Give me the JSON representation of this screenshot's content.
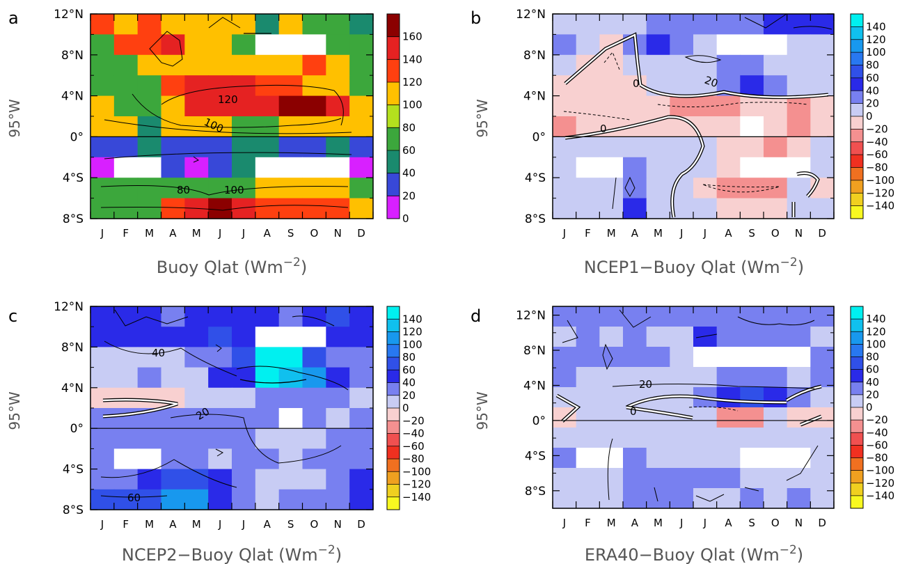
{
  "chart_data": [
    {
      "type": "heatmap",
      "panel_label": "a",
      "title": "",
      "xlabel": "Buoy Qlat (Wm",
      "xlabel_sup": "−2",
      "xlabel_close": ")",
      "ylabel": "95°W",
      "months": [
        "J",
        "F",
        "M",
        "A",
        "M",
        "J",
        "J",
        "A",
        "S",
        "O",
        "N",
        "D"
      ],
      "lat_ticks": [
        "12°N",
        "8°N",
        "4°N",
        "0°",
        "4°S",
        "8°S"
      ],
      "colorbar": {
        "tick_labels": [
          "160",
          "140",
          "120",
          "100",
          "80",
          "60",
          "40",
          "20",
          "0"
        ],
        "colors": [
          "#8b0000",
          "#e52222",
          "#ff4010",
          "#ffc000",
          "#b4e01e",
          "#3ca73c",
          "#1a8a6e",
          "#3848d8",
          "#d820ff"
        ]
      },
      "contour_labels": [
        "120",
        "100",
        "80",
        "100"
      ],
      "rows_lat": [
        "11",
        "9",
        "7",
        "5",
        "3",
        "1",
        "-1",
        "-3",
        "-5",
        "-7"
      ],
      "values": [
        [
          110,
          90,
          110,
          90,
          90,
          90,
          90,
          50,
          90,
          70,
          70,
          50
        ],
        [
          70,
          110,
          110,
          130,
          90,
          90,
          70,
          null,
          null,
          null,
          70,
          70
        ],
        [
          70,
          70,
          90,
          90,
          90,
          90,
          90,
          90,
          90,
          110,
          90,
          70
        ],
        [
          70,
          70,
          70,
          110,
          130,
          130,
          130,
          110,
          110,
          90,
          90,
          70
        ],
        [
          90,
          70,
          70,
          90,
          130,
          130,
          130,
          130,
          150,
          150,
          130,
          90
        ],
        [
          90,
          90,
          50,
          90,
          90,
          90,
          70,
          70,
          90,
          90,
          90,
          90
        ],
        [
          30,
          30,
          50,
          30,
          30,
          30,
          50,
          50,
          30,
          30,
          50,
          30
        ],
        [
          10,
          null,
          null,
          30,
          10,
          30,
          50,
          null,
          null,
          null,
          null,
          10
        ],
        [
          70,
          70,
          70,
          70,
          70,
          70,
          70,
          90,
          90,
          90,
          90,
          70
        ],
        [
          70,
          70,
          70,
          110,
          130,
          150,
          130,
          110,
          110,
          110,
          110,
          90
        ]
      ]
    },
    {
      "type": "heatmap",
      "panel_label": "b",
      "title": "",
      "xlabel": "NCEP1−Buoy Qlat (Wm",
      "xlabel_sup": "−2",
      "xlabel_close": ")",
      "ylabel": "95°W",
      "months": [
        "J",
        "F",
        "M",
        "A",
        "M",
        "J",
        "J",
        "A",
        "S",
        "O",
        "N",
        "D"
      ],
      "lat_ticks": [
        "12°N",
        "8°N",
        "4°N",
        "0°",
        "4°S",
        "8°S"
      ],
      "colorbar": {
        "tick_labels": [
          "140",
          "120",
          "100",
          "80",
          "60",
          "40",
          "20",
          "0",
          "−20",
          "−40",
          "−60",
          "−80",
          "−100",
          "−120",
          "−140"
        ],
        "colors": [
          "#00f0f0",
          "#10c0ee",
          "#1898ee",
          "#2878f0",
          "#3050e8",
          "#2a2ae8",
          "#7880f0",
          "#c8ccf4",
          "#f8d0d0",
          "#f49090",
          "#f05050",
          "#f03020",
          "#f07020",
          "#f0a020",
          "#f0d020",
          "#f8f820"
        ]
      },
      "contour_labels": [
        "0",
        "20",
        "0"
      ],
      "rows_lat": [
        "11",
        "9",
        "7",
        "5",
        "3",
        "1",
        "-1",
        "-3",
        "-5",
        "-7"
      ],
      "values": [
        [
          10,
          10,
          10,
          10,
          30,
          30,
          30,
          30,
          30,
          50,
          50,
          50
        ],
        [
          30,
          10,
          -10,
          30,
          50,
          30,
          10,
          null,
          null,
          null,
          10,
          10
        ],
        [
          10,
          -10,
          -10,
          10,
          10,
          10,
          10,
          30,
          30,
          10,
          10,
          10
        ],
        [
          -10,
          -10,
          -10,
          -10,
          10,
          10,
          10,
          30,
          50,
          30,
          10,
          10
        ],
        [
          -10,
          -10,
          -10,
          -10,
          -10,
          -30,
          -30,
          -30,
          -10,
          -10,
          -30,
          -10
        ],
        [
          -30,
          -10,
          -10,
          -10,
          -10,
          -10,
          -10,
          -10,
          null,
          -10,
          -30,
          -10
        ],
        [
          10,
          10,
          10,
          10,
          10,
          10,
          10,
          -10,
          -10,
          -30,
          -10,
          10
        ],
        [
          10,
          null,
          null,
          30,
          10,
          10,
          10,
          -10,
          null,
          null,
          null,
          10
        ],
        [
          10,
          10,
          10,
          30,
          10,
          10,
          -10,
          -30,
          -30,
          -30,
          10,
          -10
        ],
        [
          10,
          10,
          10,
          50,
          10,
          10,
          10,
          -10,
          -10,
          -10,
          10,
          10
        ]
      ]
    },
    {
      "type": "heatmap",
      "panel_label": "c",
      "title": "",
      "xlabel": "NCEP2−Buoy Qlat (Wm",
      "xlabel_sup": "−2",
      "xlabel_close": ")",
      "ylabel": "95°W",
      "months": [
        "J",
        "F",
        "M",
        "A",
        "M",
        "J",
        "J",
        "A",
        "S",
        "O",
        "N",
        "D"
      ],
      "lat_ticks": [
        "12°N",
        "8°N",
        "4°N",
        "0°",
        "4°S",
        "8°S"
      ],
      "colorbar": {
        "tick_labels": [
          "140",
          "120",
          "100",
          "80",
          "60",
          "40",
          "20",
          "0",
          "−20",
          "−40",
          "−60",
          "−80",
          "−100",
          "−120",
          "−140"
        ],
        "colors": [
          "#00f0f0",
          "#10c0ee",
          "#1898ee",
          "#2878f0",
          "#3050e8",
          "#2a2ae8",
          "#7880f0",
          "#c8ccf4",
          "#f8d0d0",
          "#f49090",
          "#f05050",
          "#f03020",
          "#f07020",
          "#f0a020",
          "#f0d020",
          "#f8f820"
        ]
      },
      "contour_labels": [
        "40",
        "20",
        "60"
      ],
      "rows_lat": [
        "11",
        "9",
        "7",
        "5",
        "3",
        "1",
        "-1",
        "-3",
        "-5",
        "-7"
      ],
      "values": [
        [
          50,
          50,
          50,
          30,
          50,
          50,
          50,
          50,
          30,
          50,
          70,
          50
        ],
        [
          50,
          50,
          50,
          50,
          50,
          70,
          50,
          null,
          null,
          null,
          50,
          50
        ],
        [
          10,
          10,
          10,
          10,
          30,
          30,
          70,
          130,
          130,
          70,
          30,
          30
        ],
        [
          10,
          10,
          30,
          10,
          10,
          50,
          50,
          130,
          110,
          90,
          50,
          30
        ],
        [
          -10,
          -10,
          -10,
          -10,
          10,
          10,
          10,
          30,
          30,
          30,
          30,
          10
        ],
        [
          30,
          30,
          30,
          30,
          30,
          30,
          30,
          30,
          null,
          30,
          10,
          30
        ],
        [
          30,
          30,
          30,
          30,
          30,
          30,
          30,
          10,
          10,
          10,
          30,
          30
        ],
        [
          30,
          null,
          null,
          30,
          30,
          10,
          30,
          30,
          10,
          30,
          30,
          30
        ],
        [
          30,
          30,
          50,
          70,
          70,
          50,
          30,
          10,
          10,
          10,
          30,
          50
        ],
        [
          70,
          70,
          70,
          90,
          90,
          50,
          30,
          10,
          30,
          30,
          30,
          50
        ]
      ]
    },
    {
      "type": "heatmap",
      "panel_label": "d",
      "title": "",
      "xlabel": "ERA40−Buoy Qlat (Wm",
      "xlabel_sup": "−2",
      "xlabel_close": ")",
      "ylabel": "95°W",
      "months": [
        "J",
        "F",
        "M",
        "A",
        "M",
        "J",
        "J",
        "A",
        "S",
        "O",
        "N",
        "D"
      ],
      "lat_ticks": [
        "12°N",
        "8°N",
        "4°N",
        "0°",
        "4°S",
        "8°S"
      ],
      "colorbar": {
        "tick_labels": [
          "140",
          "120",
          "100",
          "80",
          "60",
          "40",
          "20",
          "0",
          "−20",
          "−40",
          "−60",
          "−80",
          "−100",
          "−120",
          "−140"
        ],
        "colors": [
          "#00f0f0",
          "#10c0ee",
          "#1898ee",
          "#2878f0",
          "#3050e8",
          "#2a2ae8",
          "#7880f0",
          "#c8ccf4",
          "#f8d0d0",
          "#f49090",
          "#f05050",
          "#f03020",
          "#f07020",
          "#f0a020",
          "#f0d020",
          "#f8f820"
        ]
      },
      "contour_labels": [
        "20",
        "0"
      ],
      "rows_lat": [
        "11",
        "9",
        "7",
        "5",
        "3",
        "1",
        "-1",
        "-3",
        "-5",
        "-7"
      ],
      "values": [
        [
          30,
          30,
          30,
          30,
          30,
          30,
          30,
          30,
          30,
          30,
          30,
          30
        ],
        [
          10,
          30,
          10,
          30,
          10,
          10,
          50,
          30,
          30,
          30,
          30,
          10
        ],
        [
          30,
          30,
          30,
          30,
          30,
          10,
          null,
          null,
          null,
          null,
          null,
          30
        ],
        [
          30,
          10,
          10,
          10,
          10,
          10,
          10,
          30,
          30,
          30,
          10,
          30
        ],
        [
          10,
          10,
          10,
          10,
          10,
          10,
          30,
          50,
          70,
          50,
          30,
          10
        ],
        [
          -10,
          10,
          10,
          10,
          10,
          10,
          10,
          -30,
          -30,
          10,
          -10,
          -10
        ],
        [
          10,
          10,
          10,
          10,
          10,
          10,
          10,
          10,
          10,
          10,
          10,
          10
        ],
        [
          30,
          null,
          null,
          30,
          10,
          10,
          10,
          10,
          null,
          null,
          null,
          10
        ],
        [
          10,
          10,
          10,
          30,
          30,
          30,
          30,
          30,
          10,
          10,
          10,
          10
        ],
        [
          10,
          10,
          10,
          30,
          30,
          30,
          10,
          10,
          30,
          10,
          30,
          10
        ]
      ]
    }
  ]
}
